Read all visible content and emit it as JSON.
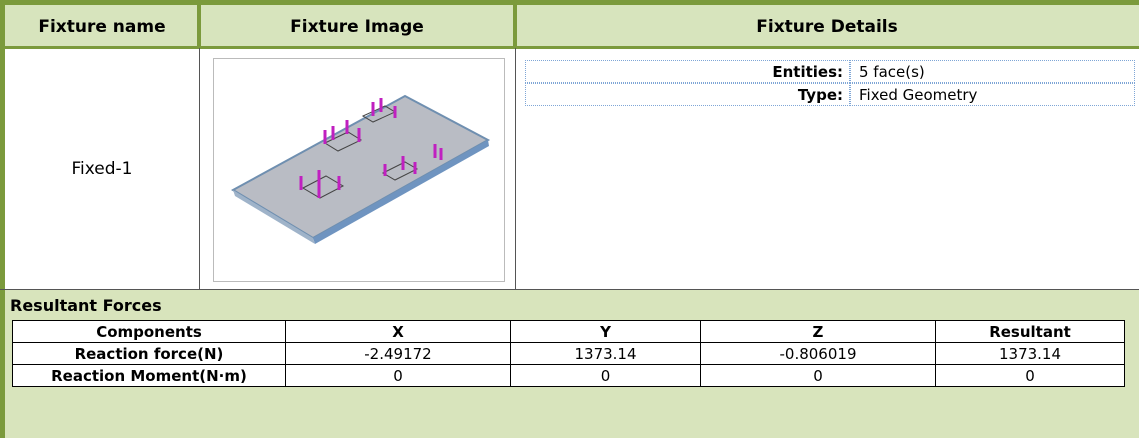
{
  "header": {
    "col1": "Fixture name",
    "col2": "Fixture Image",
    "col3": "Fixture Details"
  },
  "fixture": {
    "name": "Fixed-1",
    "details": [
      {
        "label": "Entities:",
        "value": "5 face(s)"
      },
      {
        "label": "Type:",
        "value": "Fixed Geometry"
      }
    ]
  },
  "resultant": {
    "title": "Resultant Forces",
    "table": {
      "header": [
        "Components",
        "X",
        "Y",
        "Z",
        "Resultant"
      ],
      "rows": [
        [
          "Reaction force(N)",
          "-2.49172",
          "1373.14",
          "-0.806019",
          "1373.14"
        ],
        [
          "Reaction Moment(N·m)",
          "0",
          "0",
          "0",
          "0"
        ]
      ]
    }
  }
}
